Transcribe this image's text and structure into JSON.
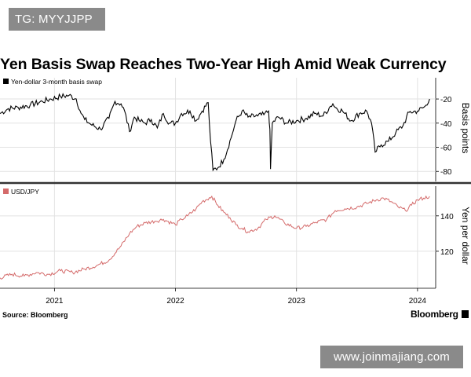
{
  "overlay": {
    "tg_label": "TG: MYYJJPP",
    "watermark": "www.joinmajiang.com"
  },
  "title": "Yen Basis Swap Reaches Two-Year High Amid Weak Currency",
  "source": "Source: Bloomberg",
  "brand": "Bloomberg",
  "colors": {
    "swap": "#000000",
    "usdjpy": "#d46a6a",
    "grid": "#dddddd",
    "divider": "#333333"
  },
  "chart_data": [
    {
      "type": "line",
      "legend": "Yen-dollar 3-month basis swap",
      "ylabel": "Basis points",
      "yticks": [
        -20,
        -40,
        -60,
        -80
      ],
      "ylim": [
        -87,
        -5
      ],
      "x": [
        2020.55,
        2020.62,
        2020.7,
        2020.8,
        2020.9,
        2020.97,
        2021.05,
        2021.12,
        2021.18,
        2021.22,
        2021.25,
        2021.3,
        2021.38,
        2021.45,
        2021.5,
        2021.55,
        2021.58,
        2021.62,
        2021.66,
        2021.7,
        2021.75,
        2021.8,
        2021.85,
        2021.9,
        2021.95,
        2022.0,
        2022.05,
        2022.12,
        2022.17,
        2022.22,
        2022.27,
        2022.29,
        2022.31,
        2022.35,
        2022.4,
        2022.46,
        2022.5,
        2022.55,
        2022.6,
        2022.68,
        2022.73,
        2022.77,
        2022.78,
        2022.785,
        2022.8,
        2022.85,
        2022.92,
        2023.0,
        2023.08,
        2023.15,
        2023.22,
        2023.28,
        2023.3,
        2023.32,
        2023.38,
        2023.45,
        2023.52,
        2023.58,
        2023.62,
        2023.65,
        2023.7,
        2023.76,
        2023.82,
        2023.88,
        2023.93,
        2024.0,
        2024.05,
        2024.08,
        2024.1
      ],
      "values": [
        -32,
        -28,
        -27,
        -25,
        -22,
        -20,
        -18,
        -17,
        -20,
        -32,
        -37,
        -41,
        -45,
        -36,
        -22,
        -24,
        -30,
        -47,
        -35,
        -38,
        -40,
        -37,
        -44,
        -32,
        -40,
        -40,
        -32,
        -30,
        -38,
        -30,
        -23,
        -55,
        -79,
        -77,
        -70,
        -52,
        -38,
        -30,
        -35,
        -34,
        -33,
        -30,
        -45,
        -78,
        -40,
        -35,
        -40,
        -38,
        -36,
        -32,
        -34,
        -26,
        -24,
        -27,
        -30,
        -38,
        -32,
        -30,
        -40,
        -64,
        -58,
        -55,
        -48,
        -42,
        -31,
        -30,
        -27,
        -25,
        -20
      ]
    },
    {
      "type": "line",
      "legend": "USD/JPY",
      "ylabel": "Yen per dollar",
      "yticks": [
        120,
        140
      ],
      "ylim": [
        100,
        155
      ],
      "x": [
        2020.55,
        2020.65,
        2020.75,
        2020.85,
        2020.95,
        2021.05,
        2021.15,
        2021.25,
        2021.35,
        2021.45,
        2021.55,
        2021.62,
        2021.68,
        2021.75,
        2021.83,
        2021.9,
        2022.0,
        2022.05,
        2022.1,
        2022.17,
        2022.22,
        2022.3,
        2022.35,
        2022.4,
        2022.45,
        2022.5,
        2022.55,
        2022.6,
        2022.68,
        2022.75,
        2022.82,
        2022.9,
        2023.0,
        2023.08,
        2023.15,
        2023.25,
        2023.32,
        2023.4,
        2023.5,
        2023.58,
        2023.66,
        2023.72,
        2023.78,
        2023.84,
        2023.9,
        2023.95,
        2024.0,
        2024.05,
        2024.1
      ],
      "values": [
        105,
        107,
        106,
        108,
        107,
        109,
        108,
        110,
        112,
        115,
        123,
        130,
        134,
        136,
        137,
        138,
        135,
        138,
        140,
        144,
        148,
        151,
        146,
        142,
        139,
        135,
        133,
        131,
        133,
        138,
        140,
        136,
        133,
        134,
        136,
        138,
        143,
        144,
        145,
        147,
        149,
        150,
        148,
        145,
        143,
        146,
        149,
        150,
        151
      ]
    }
  ],
  "xaxis": {
    "ticks": [
      2021,
      2022,
      2023,
      2024
    ],
    "labels": [
      "2021",
      "2022",
      "2023",
      "2024"
    ],
    "xlim": [
      2020.55,
      2024.15
    ]
  }
}
